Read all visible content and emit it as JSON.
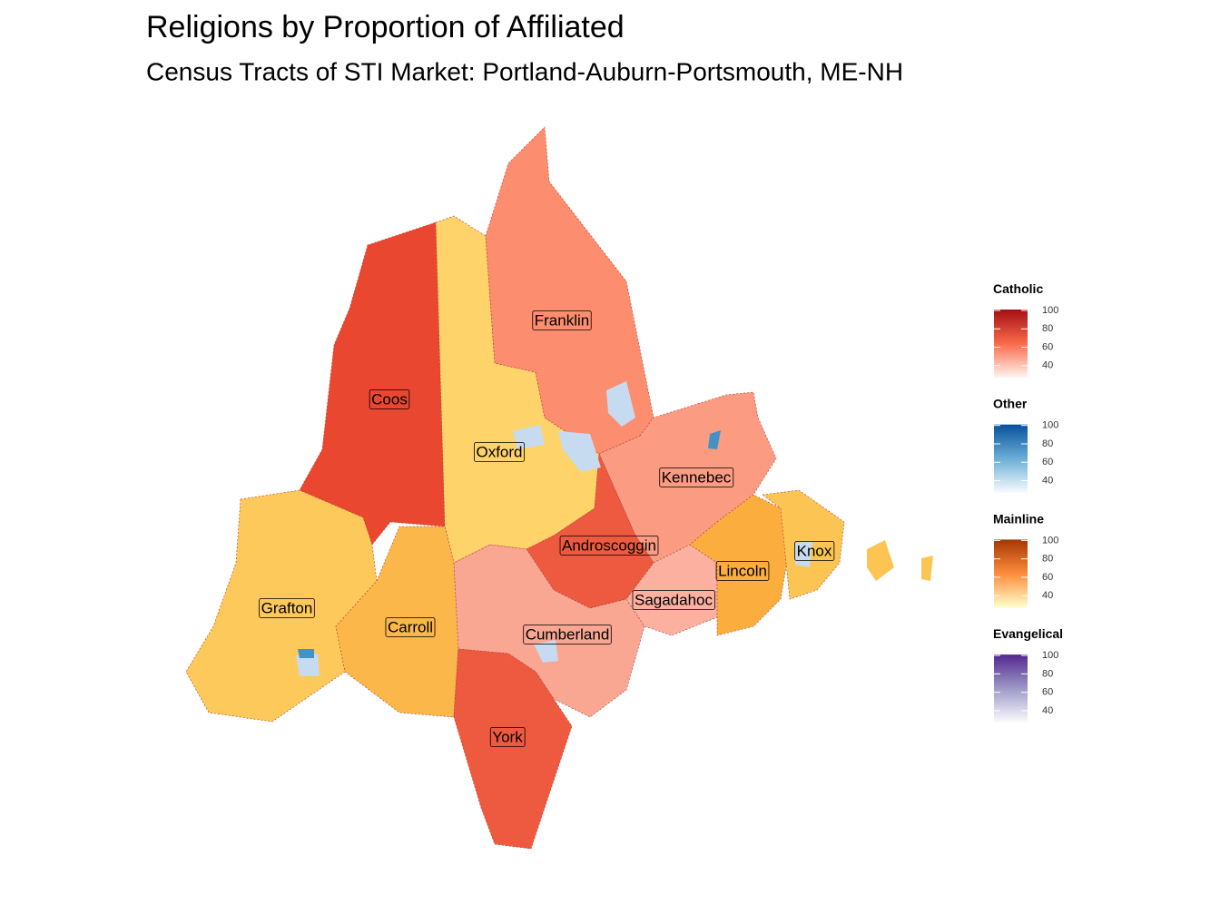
{
  "title": "Religions by Proportion of Affiliated",
  "subtitle": "Census Tracts of STI Market: Portland-Auburn-Portsmouth, ME-NH",
  "counties": [
    {
      "name": "Franklin"
    },
    {
      "name": "Coos"
    },
    {
      "name": "Oxford"
    },
    {
      "name": "Kennebec"
    },
    {
      "name": "Androscoggin"
    },
    {
      "name": "Knox"
    },
    {
      "name": "Lincoln"
    },
    {
      "name": "Grafton"
    },
    {
      "name": "Sagadahoc"
    },
    {
      "name": "Carroll"
    },
    {
      "name": "Cumberland"
    },
    {
      "name": "York"
    }
  ],
  "legends": [
    {
      "title": "Catholic",
      "limits": [
        27,
        101
      ],
      "ticks": [
        40,
        60,
        80,
        100
      ],
      "colors": [
        "#fff5f0",
        "#fb6a4a",
        "#a50f15"
      ]
    },
    {
      "title": "Other",
      "limits": [
        27,
        101
      ],
      "ticks": [
        40,
        60,
        80,
        100
      ],
      "colors": [
        "#f7fbff",
        "#6baed6",
        "#08519c"
      ]
    },
    {
      "title": "Mainline",
      "limits": [
        27,
        101
      ],
      "ticks": [
        40,
        60,
        80,
        100
      ],
      "colors": [
        "#ffffcc",
        "#fd8d3c",
        "#a63603"
      ]
    },
    {
      "title": "Evangelical",
      "limits": [
        27,
        101
      ],
      "ticks": [
        40,
        60,
        80,
        100
      ],
      "colors": [
        "#fcfbfd",
        "#9e9ac8",
        "#54278f"
      ]
    }
  ]
}
